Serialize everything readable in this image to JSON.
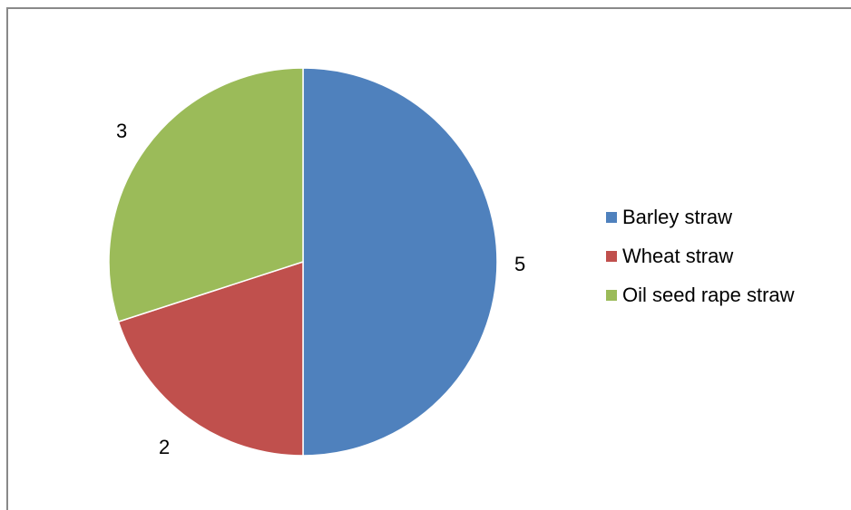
{
  "chart_data": {
    "type": "pie",
    "categories": [
      "Barley straw",
      "Wheat straw",
      "Oil seed rape straw"
    ],
    "values": [
      5,
      2,
      3
    ],
    "colors": [
      "#4f81bd",
      "#c0504d",
      "#9bbb59"
    ],
    "data_labels": [
      "5",
      "2",
      "3"
    ],
    "legend_position": "right",
    "start_angle": "12 o'clock",
    "direction": "clockwise"
  }
}
